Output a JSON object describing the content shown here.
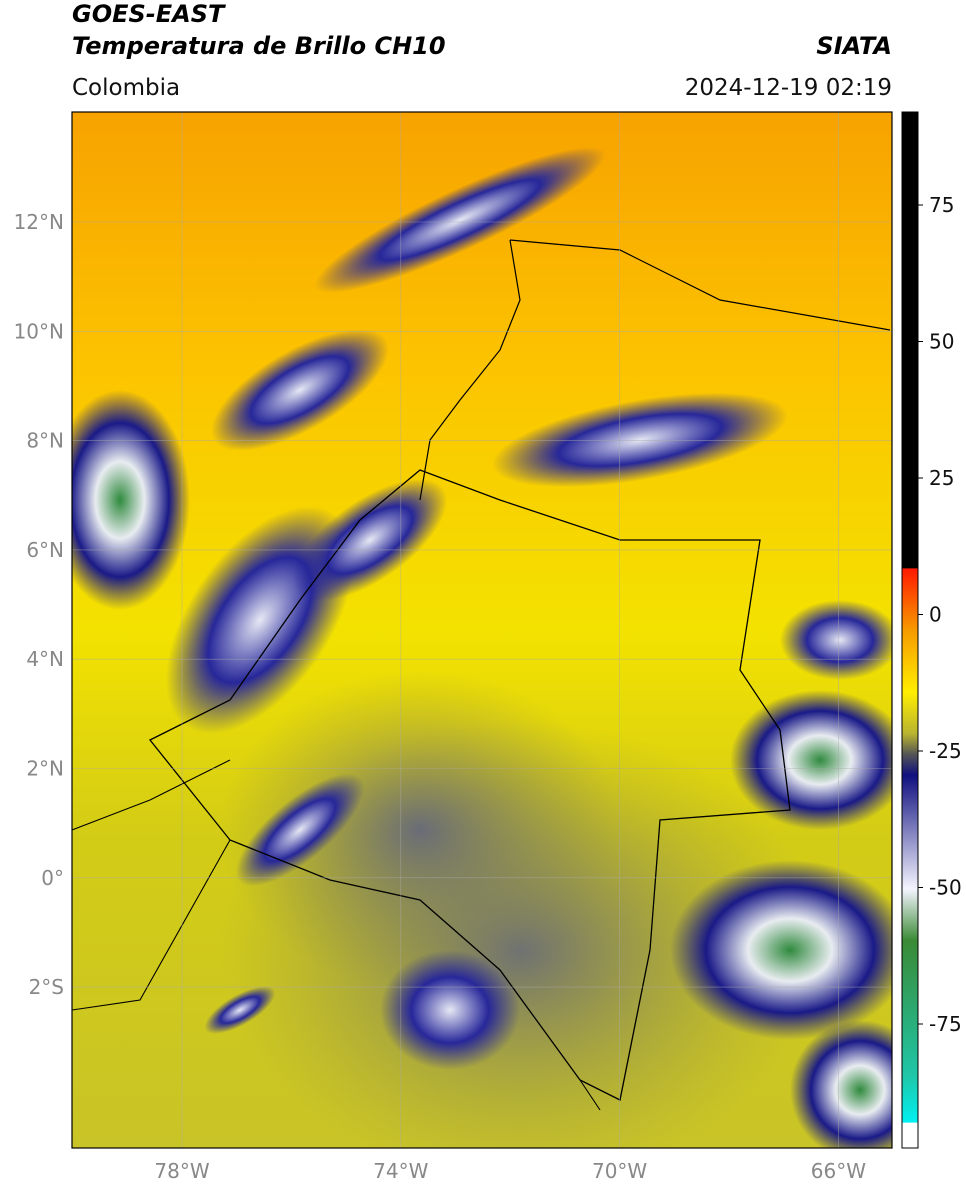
{
  "header": {
    "title": "GOES-EAST",
    "subtitle": "Temperatura de Brillo CH10",
    "source": "SIATA",
    "region": "Colombia",
    "datetime": "2024-12-19 02:19"
  },
  "map": {
    "lon_ticks": [
      "78°W",
      "74°W",
      "70°W",
      "66°W"
    ],
    "lat_ticks": [
      "12°N",
      "10°N",
      "8°N",
      "6°N",
      "4°N",
      "2°N",
      "0°",
      "2°S"
    ]
  },
  "colorbar": {
    "ticks": [
      75,
      50,
      25,
      0,
      -25,
      -50,
      -75
    ]
  }
}
